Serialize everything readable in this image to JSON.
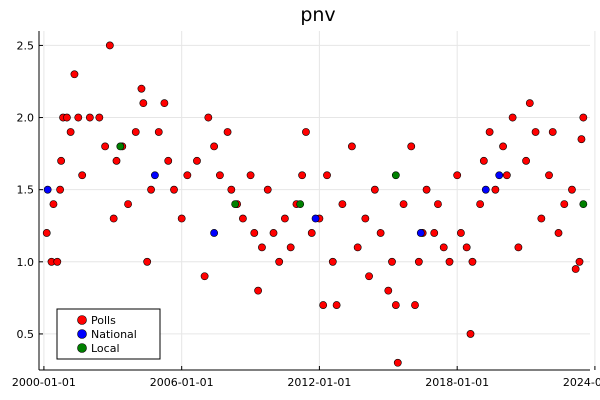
{
  "chart_data": {
    "type": "scatter",
    "title": "pnv",
    "xlabel": "",
    "ylabel": "",
    "x_range": [
      "1999-10-15",
      "2023-10-15"
    ],
    "ylim": [
      0.25,
      2.6
    ],
    "x_ticks": [
      "2000-01-01",
      "2006-01-01",
      "2012-01-01",
      "2018-01-01",
      "2024-01-01"
    ],
    "y_ticks": [
      0.5,
      1.0,
      1.5,
      2.0,
      2.5
    ],
    "y_tick_labels": [
      "0.5",
      "1.0",
      "1.5",
      "2.0",
      "2.5"
    ],
    "grid": true,
    "legend_position": "bottom-left",
    "series": [
      {
        "name": "Polls",
        "color": "#ff0000",
        "points": [
          [
            "2000-02-15",
            1.2
          ],
          [
            "2000-05-01",
            1.0
          ],
          [
            "2000-08-01",
            1.0
          ],
          [
            "2000-06-01",
            1.4
          ],
          [
            "2000-09-15",
            1.5
          ],
          [
            "2000-10-01",
            1.7
          ],
          [
            "2000-11-01",
            2.0
          ],
          [
            "2001-01-01",
            2.0
          ],
          [
            "2001-03-01",
            1.9
          ],
          [
            "2001-05-01",
            2.3
          ],
          [
            "2001-07-01",
            2.0
          ],
          [
            "2001-09-01",
            1.6
          ],
          [
            "2002-01-01",
            2.0
          ],
          [
            "2002-06-01",
            2.0
          ],
          [
            "2002-09-01",
            1.8
          ],
          [
            "2002-11-15",
            2.5
          ],
          [
            "2003-01-15",
            1.3
          ],
          [
            "2003-03-01",
            1.7
          ],
          [
            "2003-06-01",
            1.8
          ],
          [
            "2003-09-01",
            1.4
          ],
          [
            "2004-01-01",
            1.9
          ],
          [
            "2004-04-01",
            2.2
          ],
          [
            "2004-05-01",
            2.1
          ],
          [
            "2004-07-01",
            1.0
          ],
          [
            "2004-09-01",
            1.5
          ],
          [
            "2005-01-01",
            1.9
          ],
          [
            "2005-04-01",
            2.1
          ],
          [
            "2005-06-01",
            1.7
          ],
          [
            "2005-09-01",
            1.5
          ],
          [
            "2006-01-01",
            1.3
          ],
          [
            "2006-04-01",
            1.6
          ],
          [
            "2006-09-01",
            1.7
          ],
          [
            "2007-01-01",
            0.9
          ],
          [
            "2007-03-01",
            2.0
          ],
          [
            "2007-06-01",
            1.8
          ],
          [
            "2007-09-01",
            1.6
          ],
          [
            "2008-01-01",
            1.9
          ],
          [
            "2008-03-01",
            1.5
          ],
          [
            "2008-06-01",
            1.4
          ],
          [
            "2008-09-01",
            1.3
          ],
          [
            "2009-01-01",
            1.6
          ],
          [
            "2009-03-01",
            1.2
          ],
          [
            "2009-05-01",
            0.8
          ],
          [
            "2009-07-01",
            1.1
          ],
          [
            "2009-10-01",
            1.5
          ],
          [
            "2010-01-01",
            1.2
          ],
          [
            "2010-04-01",
            1.0
          ],
          [
            "2010-07-01",
            1.3
          ],
          [
            "2010-10-01",
            1.1
          ],
          [
            "2011-01-01",
            1.4
          ],
          [
            "2011-04-01",
            1.6
          ],
          [
            "2011-06-01",
            1.9
          ],
          [
            "2011-09-01",
            1.2
          ],
          [
            "2012-01-01",
            1.3
          ],
          [
            "2012-03-01",
            0.7
          ],
          [
            "2012-05-01",
            1.6
          ],
          [
            "2012-08-01",
            1.0
          ],
          [
            "2012-10-01",
            0.7
          ],
          [
            "2013-01-01",
            1.4
          ],
          [
            "2013-06-01",
            1.8
          ],
          [
            "2013-09-01",
            1.1
          ],
          [
            "2014-01-01",
            1.3
          ],
          [
            "2014-03-01",
            0.9
          ],
          [
            "2014-06-01",
            1.5
          ],
          [
            "2014-09-01",
            1.2
          ],
          [
            "2015-01-01",
            0.8
          ],
          [
            "2015-03-01",
            1.0
          ],
          [
            "2015-05-01",
            0.7
          ],
          [
            "2015-06-01",
            0.3
          ],
          [
            "2015-09-01",
            1.4
          ],
          [
            "2016-01-01",
            1.8
          ],
          [
            "2016-03-01",
            0.7
          ],
          [
            "2016-05-01",
            1.0
          ],
          [
            "2016-07-01",
            1.2
          ],
          [
            "2016-09-01",
            1.5
          ],
          [
            "2017-01-01",
            1.2
          ],
          [
            "2017-03-01",
            1.4
          ],
          [
            "2017-06-01",
            1.1
          ],
          [
            "2017-09-01",
            1.0
          ],
          [
            "2018-01-01",
            1.6
          ],
          [
            "2018-03-01",
            1.2
          ],
          [
            "2018-06-01",
            1.1
          ],
          [
            "2018-08-01",
            0.5
          ],
          [
            "2018-09-01",
            1.0
          ],
          [
            "2019-01-01",
            1.4
          ],
          [
            "2019-03-01",
            1.7
          ],
          [
            "2019-06-01",
            1.9
          ],
          [
            "2019-09-01",
            1.5
          ],
          [
            "2020-01-01",
            1.8
          ],
          [
            "2020-03-01",
            1.6
          ],
          [
            "2020-06-01",
            2.0
          ],
          [
            "2020-09-01",
            1.1
          ],
          [
            "2021-01-01",
            1.7
          ],
          [
            "2021-03-01",
            2.1
          ],
          [
            "2021-06-01",
            1.9
          ],
          [
            "2021-09-01",
            1.3
          ],
          [
            "2022-01-01",
            1.6
          ],
          [
            "2022-03-01",
            1.9
          ],
          [
            "2022-06-01",
            1.2
          ],
          [
            "2022-09-01",
            1.4
          ],
          [
            "2023-01-01",
            1.5
          ],
          [
            "2023-03-01",
            0.95
          ],
          [
            "2023-05-01",
            1.0
          ],
          [
            "2023-06-01",
            1.85
          ],
          [
            "2023-07-01",
            2.0
          ]
        ]
      },
      {
        "name": "National",
        "color": "#0000ff",
        "points": [
          [
            "2000-03-01",
            1.5
          ],
          [
            "2004-11-01",
            1.6
          ],
          [
            "2007-06-01",
            1.2
          ],
          [
            "2011-11-01",
            1.3
          ],
          [
            "2016-06-01",
            1.2
          ],
          [
            "2019-04-01",
            1.5
          ],
          [
            "2019-11-01",
            1.6
          ]
        ]
      },
      {
        "name": "Local",
        "color": "#008000",
        "points": [
          [
            "2003-05-01",
            1.8
          ],
          [
            "2008-05-01",
            1.4
          ],
          [
            "2011-03-01",
            1.4
          ],
          [
            "2015-05-01",
            1.6
          ],
          [
            "2023-07-01",
            1.4
          ]
        ]
      }
    ]
  }
}
